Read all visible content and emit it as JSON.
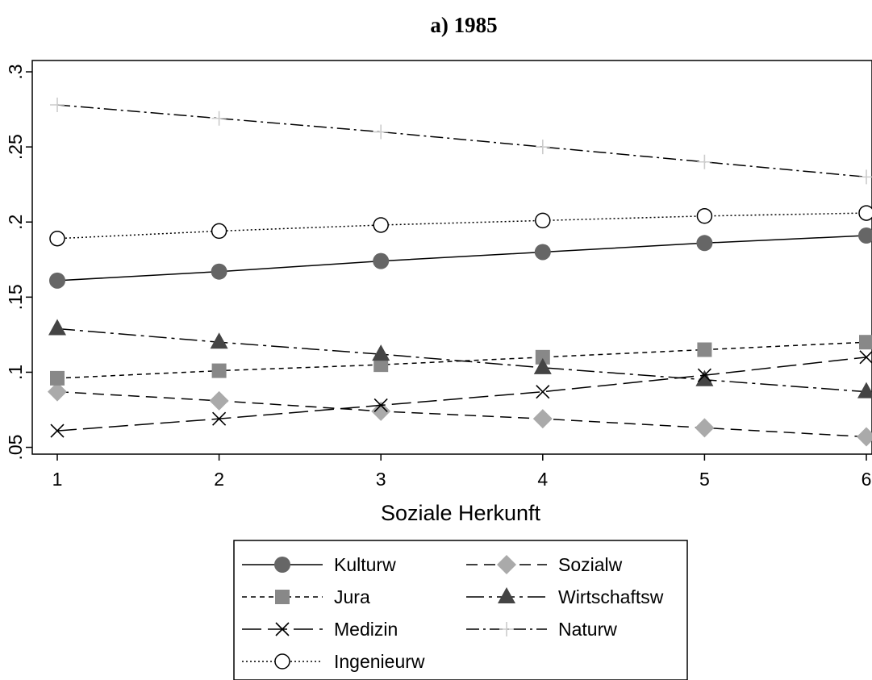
{
  "chart_data": {
    "type": "line",
    "title": "a) 1985",
    "xlabel": "Soziale Herkunft",
    "ylabel": "",
    "x": [
      1,
      2,
      3,
      4,
      5,
      6
    ],
    "x_ticks": [
      "1",
      "2",
      "3",
      "4",
      "5",
      "6"
    ],
    "xlim": [
      1,
      6
    ],
    "y_ticks": [
      ".05",
      ".1",
      ".15",
      ".2",
      ".25",
      ".3"
    ],
    "y_tick_values": [
      0.05,
      0.1,
      0.15,
      0.2,
      0.25,
      0.3
    ],
    "ylim": [
      0.046,
      0.307
    ],
    "grid": false,
    "legend_position": "bottom",
    "series": [
      {
        "name": "Kulturw",
        "values": [
          0.161,
          0.167,
          0.174,
          0.18,
          0.186,
          0.191
        ],
        "marker": "circle-filled",
        "dash": "solid",
        "color": "#666666"
      },
      {
        "name": "Sozialw",
        "values": [
          0.087,
          0.081,
          0.074,
          0.069,
          0.063,
          0.057
        ],
        "marker": "diamond",
        "dash": "dashed",
        "color": "#aaaaaa"
      },
      {
        "name": "Jura",
        "values": [
          0.096,
          0.101,
          0.105,
          0.11,
          0.115,
          0.12
        ],
        "marker": "square",
        "dash": "short-dash",
        "color": "#888888"
      },
      {
        "name": "Wirtschaftsw",
        "values": [
          0.129,
          0.12,
          0.112,
          0.103,
          0.095,
          0.087
        ],
        "marker": "triangle",
        "dash": "long-dash-dot",
        "color": "#444444"
      },
      {
        "name": "Medizin",
        "values": [
          0.061,
          0.069,
          0.078,
          0.087,
          0.098,
          0.11
        ],
        "marker": "x",
        "dash": "long-dash",
        "color": "#000000"
      },
      {
        "name": "Naturw",
        "values": [
          0.278,
          0.269,
          0.26,
          0.25,
          0.24,
          0.23
        ],
        "marker": "plus",
        "dash": "dash-dot",
        "color": "#cccccc"
      },
      {
        "name": "Ingenieurw",
        "values": [
          0.189,
          0.194,
          0.198,
          0.201,
          0.204,
          0.206
        ],
        "marker": "circle-open",
        "dash": "dotted",
        "color": "#000000"
      }
    ]
  }
}
